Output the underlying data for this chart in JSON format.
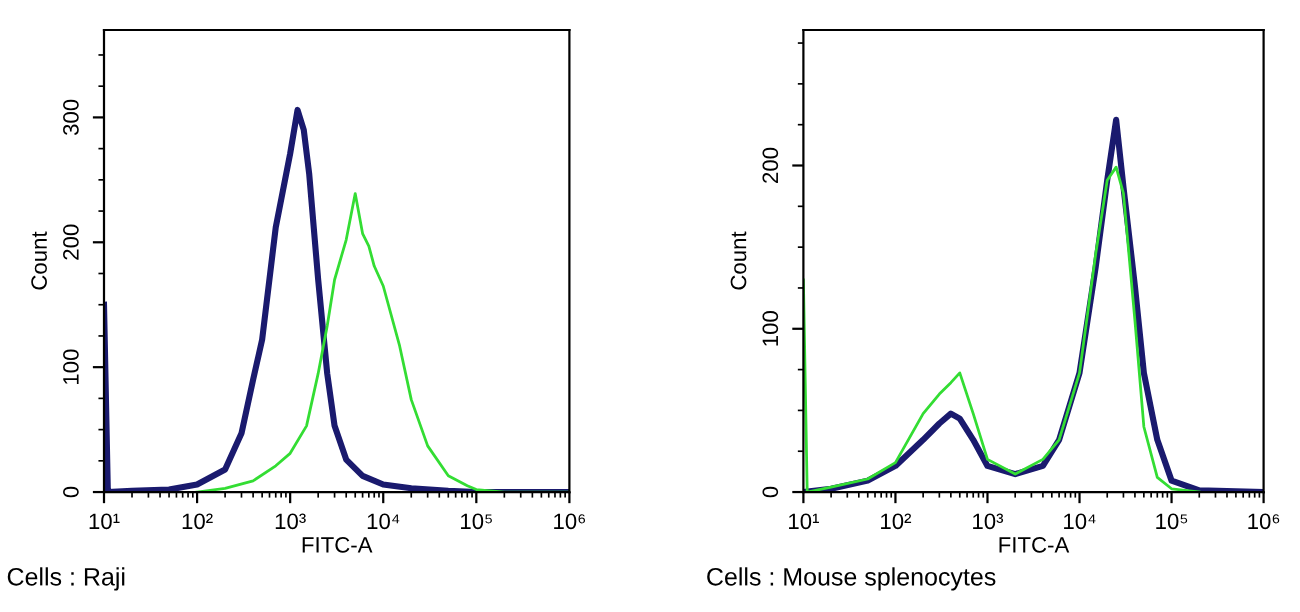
{
  "chart_data": [
    {
      "type": "line",
      "xlabel": "FITC-A",
      "ylabel": "Count",
      "log": "x",
      "grid": false,
      "legend": false,
      "annotations": [
        "Cells : Raji"
      ],
      "xlim": [
        10,
        1000000
      ],
      "xticks": [
        {
          "value": 10,
          "label": "10¹"
        },
        {
          "value": 100,
          "label": "10²"
        },
        {
          "value": 1000,
          "label": "10³"
        },
        {
          "value": 10000,
          "label": "10⁴"
        },
        {
          "value": 100000,
          "label": "10⁵"
        },
        {
          "value": 1000000,
          "label": "10⁶"
        }
      ],
      "ylim": [
        0,
        370
      ],
      "yticks": [
        0,
        100,
        200,
        300
      ],
      "series": [
        {
          "color": "#1a1a6e",
          "x": [
            10,
            11,
            20,
            50,
            100,
            200,
            300,
            400,
            500,
            700,
            1000,
            1200,
            1400,
            1600,
            2000,
            2500,
            3000,
            4000,
            6000,
            10000,
            20000,
            50000,
            100000,
            1000000
          ],
          "values": [
            150,
            0,
            1,
            2,
            6,
            18,
            47,
            90,
            122,
            212,
            271,
            306,
            290,
            255,
            170,
            95,
            53,
            26,
            13,
            6,
            3,
            1,
            0,
            0
          ]
        },
        {
          "color": "#33dd33",
          "x": [
            100,
            200,
            400,
            700,
            1000,
            1500,
            2000,
            2500,
            3000,
            4000,
            5000,
            6000,
            7000,
            8000,
            10000,
            15000,
            20000,
            30000,
            50000,
            80000,
            100000,
            200000,
            1000000
          ],
          "values": [
            0,
            3,
            9,
            21,
            31,
            53,
            95,
            133,
            170,
            202,
            239,
            207,
            197,
            181,
            165,
            117,
            74,
            37,
            13,
            5,
            2,
            0,
            0
          ]
        }
      ]
    },
    {
      "type": "line",
      "xlabel": "FITC-A",
      "ylabel": "Count",
      "log": "x",
      "grid": false,
      "legend": false,
      "annotations": [
        "Cells : Mouse splenocytes"
      ],
      "xlim": [
        10,
        1000000
      ],
      "xticks": [
        {
          "value": 10,
          "label": "10¹"
        },
        {
          "value": 100,
          "label": "10²"
        },
        {
          "value": 1000,
          "label": "10³"
        },
        {
          "value": 10000,
          "label": "10⁴"
        },
        {
          "value": 100000,
          "label": "10⁵"
        },
        {
          "value": 1000000,
          "label": "10⁶"
        }
      ],
      "ylim": [
        0,
        283
      ],
      "yticks": [
        0,
        100,
        200
      ],
      "series": [
        {
          "color": "#1a1a6e",
          "x": [
            10,
            20,
            50,
            100,
            200,
            300,
            400,
            500,
            700,
            1000,
            2000,
            4000,
            6000,
            10000,
            15000,
            20000,
            25000,
            30000,
            40000,
            50000,
            70000,
            100000,
            200000,
            1000000
          ],
          "values": [
            0,
            2,
            7,
            16,
            32,
            42,
            48,
            45,
            32,
            16,
            11,
            16,
            32,
            73,
            138,
            191,
            228,
            187,
            126,
            73,
            32,
            7,
            1,
            0
          ]
        },
        {
          "color": "#33dd33",
          "x": [
            10,
            11,
            20,
            50,
            100,
            200,
            300,
            400,
            500,
            700,
            1000,
            2000,
            4000,
            6000,
            10000,
            15000,
            20000,
            25000,
            30000,
            40000,
            50000,
            70000,
            100000,
            200000
          ],
          "values": [
            130,
            0,
            3,
            8,
            18,
            48,
            60,
            67,
            73,
            48,
            20,
            11,
            20,
            32,
            73,
            146,
            191,
            199,
            183,
            105,
            40,
            9,
            2,
            0
          ]
        }
      ]
    }
  ]
}
